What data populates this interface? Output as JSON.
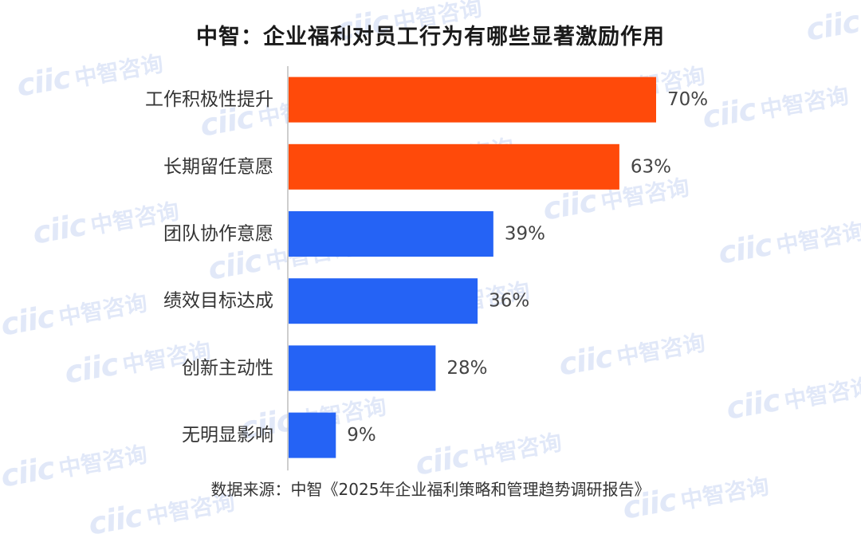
{
  "chart_data": {
    "type": "bar",
    "orientation": "horizontal",
    "title": "中智：企业福利对员工行为有哪些显著激励作用",
    "categories": [
      "工作积极性提升",
      "长期留任意愿",
      "团队协作意愿",
      "绩效目标达成",
      "创新主动性",
      "无明显影响"
    ],
    "values": [
      70,
      63,
      39,
      36,
      28,
      9
    ],
    "value_labels": [
      "70%",
      "63%",
      "39%",
      "36%",
      "28%",
      "9%"
    ],
    "bar_colors": [
      "#ff4a0a",
      "#ff4a0a",
      "#2563f5",
      "#2563f5",
      "#2563f5",
      "#2563f5"
    ],
    "xlim": [
      0,
      100
    ],
    "grid": false,
    "source": "数据来源：中智《2025年企业福利策略和管理趋势调研报告》"
  },
  "watermark": {
    "logo": "ciic",
    "text": "中智咨询",
    "color": "#c9d6f4"
  }
}
